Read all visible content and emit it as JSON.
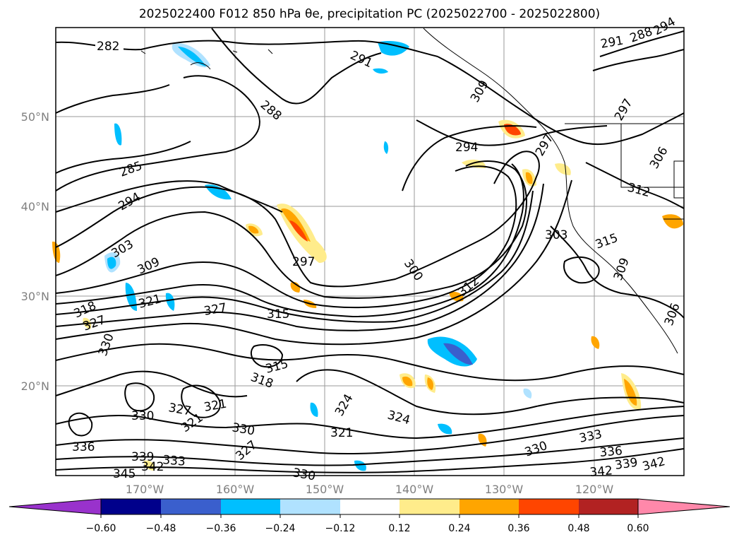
{
  "title": "2025022400 F012 850 hPa θe, precipitation PC (2025022700 - 2025022800)",
  "lat_labels": [
    "50°N",
    "40°N",
    "30°N",
    "20°N"
  ],
  "lon_labels": [
    "170°W",
    "160°W",
    "150°W",
    "140°W",
    "130°W",
    "120°W"
  ],
  "colorbar": {
    "tick_labels": [
      "−0.60",
      "−0.48",
      "−0.36",
      "−0.24",
      "−0.12",
      "0.12",
      "0.24",
      "0.36",
      "0.48",
      "0.60"
    ],
    "colors": [
      "#9932CC",
      "#00008B",
      "#3A5FCD",
      "#00BFFF",
      "#B0E2FF",
      "#FFFFFF",
      "#FFEC8B",
      "#FFA500",
      "#FF4500",
      "#B22222",
      "#FF88AA"
    ]
  },
  "contour_labels": [
    "282",
    "291",
    "288",
    "285",
    "294",
    "303",
    "309",
    "318",
    "321",
    "327",
    "330",
    "297",
    "315",
    "300",
    "312",
    "294",
    "297",
    "306",
    "303",
    "315",
    "309",
    "306",
    "327",
    "321",
    "324",
    "315",
    "318",
    "330",
    "327",
    "321",
    "330",
    "324",
    "321",
    "327",
    "336",
    "339",
    "333",
    "342",
    "345",
    "330",
    "330",
    "333",
    "336",
    "339",
    "342",
    "342",
    "291",
    "288",
    "294",
    "297",
    "312",
    "309"
  ]
}
